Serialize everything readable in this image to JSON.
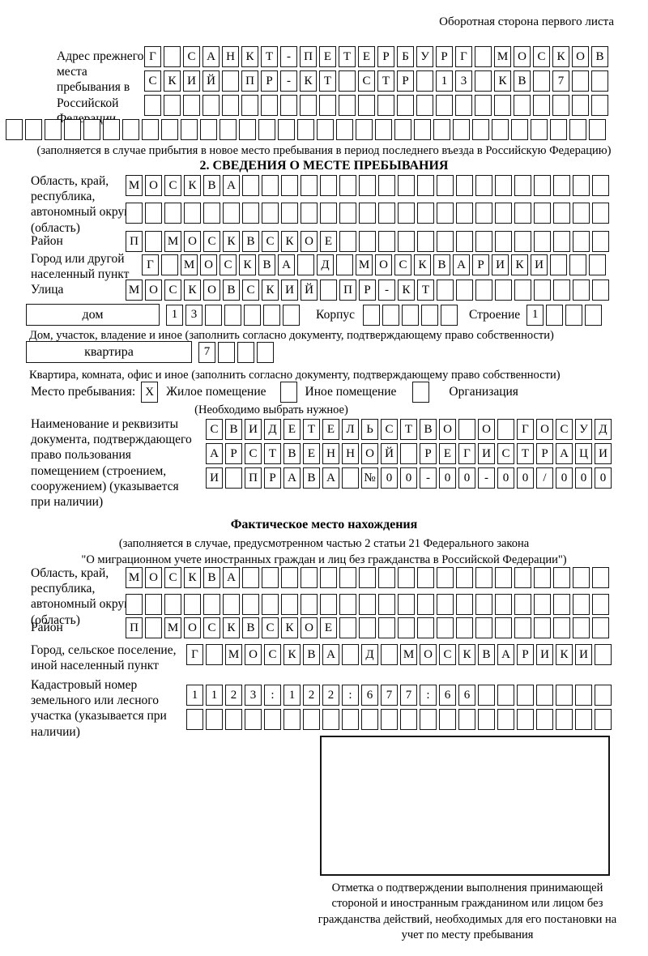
{
  "header": {
    "note": "Оборотная сторона первого листа"
  },
  "prev_address": {
    "label": "Адрес прежнего места пребывания в Российской Федерации",
    "row1": {
      "value": "Г САНКТ-ПЕТЕРБУРГ МОСКОВ",
      "count": 24
    },
    "row2": {
      "value": "СКИЙ ПР-КТ СТР 13 КВ 7",
      "count": 24
    },
    "row3": {
      "value": "",
      "count": 24
    },
    "row4": {
      "value": "",
      "count": 31
    },
    "caption": "(заполняется в случае прибытия в новое место пребывания в период последнего въезда в Российскую Федерацию)"
  },
  "section2": {
    "title": "2. СВЕДЕНИЯ О МЕСТЕ ПРЕБЫВАНИЯ",
    "region": {
      "label": "Область, край, республика, автономный округ (область)",
      "row1": {
        "value": "МОСКВА",
        "count": 25
      },
      "row2": {
        "value": "",
        "count": 25
      }
    },
    "district": {
      "label": "Район",
      "row": {
        "value": "П МОСКВСКОЕ",
        "count": 25
      }
    },
    "city": {
      "label": "Город или другой населенный пункт",
      "row": {
        "value": "Г МОСКВА Д МОСКВАРИКИ",
        "count": 24
      }
    },
    "street": {
      "label": "Улица",
      "row": {
        "value": "МОСКОВСКИЙ ПР-КТ",
        "count": 25
      }
    },
    "house": {
      "box_label": "дом",
      "row": {
        "value": "13",
        "count": 7
      },
      "korpus_label": "Корпус",
      "korpus_row": {
        "value": "",
        "count": 5
      },
      "stroenie_label": "Строение",
      "stroenie_row": {
        "value": "1",
        "count": 4
      },
      "caption": "Дом, участок, владение и иное (заполнить согласно документу, подтверждающему право собственности)"
    },
    "apartment": {
      "box_label": "квартира",
      "row": {
        "value": "7",
        "count": 4
      },
      "caption": "Квартира, комната, офис и иное (заполнить согласно документу, подтверждающему право собственности)"
    },
    "stay_type": {
      "label": "Место пребывания:",
      "options": [
        {
          "label": "Жилое помещение",
          "checked": "X"
        },
        {
          "label": "Иное помещение",
          "checked": ""
        },
        {
          "label": "Организация",
          "checked": ""
        }
      ],
      "note": "(Необходимо выбрать нужное)"
    },
    "document": {
      "label": "Наименование и реквизиты документа, подтверждающего право пользования помещением (строением, сооружением) (указывается при наличии)",
      "row1": {
        "value": "СВИДЕТЕЛЬСТВО О ГОСУД",
        "count": 21
      },
      "row2": {
        "value": "АРСТВЕННОЙ РЕГИСТРАЦИ",
        "count": 21
      },
      "row3": {
        "value": "И ПРАВА №00-00-00/000",
        "count": 21
      }
    }
  },
  "actual_location": {
    "title": "Фактическое место нахождения",
    "subtitle1": "(заполняется в случае, предусмотренном частью 2 статьи 21 Федерального закона",
    "subtitle2": "\"О миграционном учете иностранных граждан и лиц без гражданства в Российской Федерации\")",
    "region": {
      "label": "Область, край, республика, автономный округ (область)",
      "row1": {
        "value": "МОСКВА",
        "count": 25
      },
      "row2": {
        "value": "",
        "count": 25
      }
    },
    "district": {
      "label": "Район",
      "row": {
        "value": "П МОСКВСКОЕ",
        "count": 25
      }
    },
    "city": {
      "label": "Город, сельское поселение, иной населенный пункт",
      "row": {
        "value": "Г МОСКВА Д МОСКВАРИКИ",
        "count": 22
      }
    },
    "cadastral": {
      "label": "Кадастровый номер земельного или лесного участка (указывается при наличии)",
      "row1": {
        "value": "1123:122:677:66",
        "count": 22
      },
      "row2": {
        "value": "",
        "count": 22
      }
    }
  },
  "stamp": {
    "caption": "Отметка о подтверждении выполнения принимающей стороной и иностранным гражданином или лицом без гражданства действий, необходимых для его постановки на учет по месту пребывания"
  }
}
